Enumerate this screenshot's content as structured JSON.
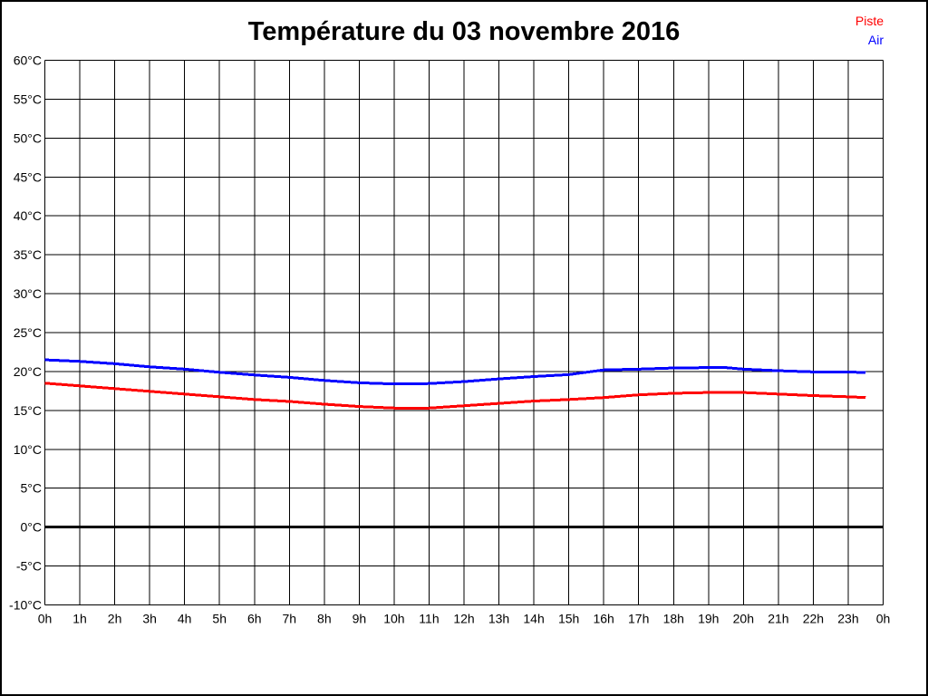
{
  "chart_data": {
    "type": "line",
    "title": "Température du 03 novembre 2016",
    "x_unit": "h",
    "y_unit": "°C",
    "xlim": [
      0,
      24
    ],
    "ylim": [
      -10,
      60
    ],
    "y_tick_step": 5,
    "x_tick_step": 1,
    "grid": true,
    "zero_line_value": 0,
    "x_tick_labels": [
      "0h",
      "1h",
      "2h",
      "3h",
      "4h",
      "5h",
      "6h",
      "7h",
      "8h",
      "9h",
      "10h",
      "11h",
      "12h",
      "13h",
      "14h",
      "15h",
      "16h",
      "17h",
      "18h",
      "19h",
      "20h",
      "21h",
      "22h",
      "23h",
      "0h"
    ],
    "y_tick_labels": [
      "-10°C",
      "-5°C",
      "0°C",
      "5°C",
      "10°C",
      "15°C",
      "20°C",
      "25°C",
      "30°C",
      "35°C",
      "40°C",
      "45°C",
      "50°C",
      "55°C",
      "60°C"
    ],
    "legend_position": "top-right",
    "x": [
      0,
      1,
      2,
      3,
      4,
      5,
      6,
      7,
      8,
      9,
      10,
      11,
      12,
      13,
      14,
      15,
      16,
      17,
      18,
      19,
      19.5,
      20,
      21,
      22,
      23,
      23.5
    ],
    "series": [
      {
        "name": "Piste",
        "color": "#ff0000",
        "values": [
          18.5,
          18.15,
          17.8,
          17.45,
          17.1,
          16.75,
          16.4,
          16.15,
          15.8,
          15.5,
          15.3,
          15.3,
          15.6,
          15.9,
          16.2,
          16.4,
          16.65,
          17.0,
          17.2,
          17.3,
          17.3,
          17.3,
          17.1,
          16.9,
          16.75,
          16.65
        ]
      },
      {
        "name": "Air",
        "color": "#0000ff",
        "values": [
          21.5,
          21.3,
          21.0,
          20.6,
          20.3,
          19.9,
          19.55,
          19.25,
          18.85,
          18.55,
          18.4,
          18.45,
          18.7,
          19.05,
          19.35,
          19.6,
          20.2,
          20.3,
          20.45,
          20.5,
          20.5,
          20.3,
          20.1,
          19.95,
          19.95,
          19.85
        ]
      }
    ],
    "colors": {
      "grid": "#000000",
      "zero_line": "#000000",
      "text": "#000000",
      "background": "#ffffff"
    }
  }
}
